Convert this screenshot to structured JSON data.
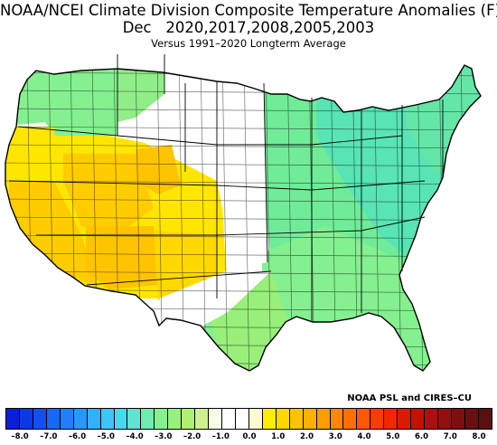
{
  "header": {
    "title_line1": "NOAA/NCEI Climate Division Composite Temperature Anomalies (F)",
    "title_line2": "Dec   2020,2017,2008,2005,2003",
    "subtitle": "Versus 1991–2020 Longterm Average"
  },
  "credit": "NOAA PSL and CIRES–CU",
  "legend": {
    "ticks": [
      "–8.0",
      "–7.0",
      "–6.0",
      "–5.0",
      "–4.0",
      "–3.0",
      "–2.0",
      "–1.0",
      "0.0",
      "1.0",
      "2.0",
      "3.0",
      "4.0",
      "5.0",
      "6.0",
      "7.0",
      "8.0"
    ],
    "swatch_colors": [
      "#0a20d8",
      "#0c38e6",
      "#1050f0",
      "#1868f6",
      "#2080fa",
      "#2898fc",
      "#30b0fd",
      "#3cc6fc",
      "#4ad8ee",
      "#5ee4d0",
      "#70ecb0",
      "#84f090",
      "#98f07a",
      "#b0f070",
      "#cef090",
      "#f4ffe8",
      "#ffffff",
      "#ffffff",
      "#fffad0",
      "#ffee00",
      "#ffd800",
      "#ffc400",
      "#ffb000",
      "#ff9c00",
      "#ff8800",
      "#ff7000",
      "#ff5800",
      "#ff3c00",
      "#f02800",
      "#dc1a00",
      "#c41200",
      "#aa1010",
      "#921010",
      "#7c1010",
      "#681010",
      "#5a1010"
    ]
  },
  "map_regions": [
    {
      "region": "pacific-northwest",
      "anomaly_class": "light-green"
    },
    {
      "region": "northern-rockies",
      "anomaly_class": "white"
    },
    {
      "region": "northern-plains-nd",
      "anomaly_class": "yellow"
    },
    {
      "region": "california-great-basin",
      "anomaly_class": "orange-yellow"
    },
    {
      "region": "southwest",
      "anomaly_class": "orange-yellow"
    },
    {
      "region": "central-plains",
      "anomaly_class": "white"
    },
    {
      "region": "eastern-us",
      "anomaly_class": "green-teal"
    },
    {
      "region": "texas-gulf",
      "anomaly_class": "light-green"
    }
  ],
  "colors": {
    "white": "#ffffff",
    "yellow": "#ffe600",
    "orange_yellow": "#ffcc00",
    "light_green": "#90ee7a",
    "mid_green": "#70ec98",
    "teal_green": "#58e4b4",
    "border": "#000000"
  }
}
